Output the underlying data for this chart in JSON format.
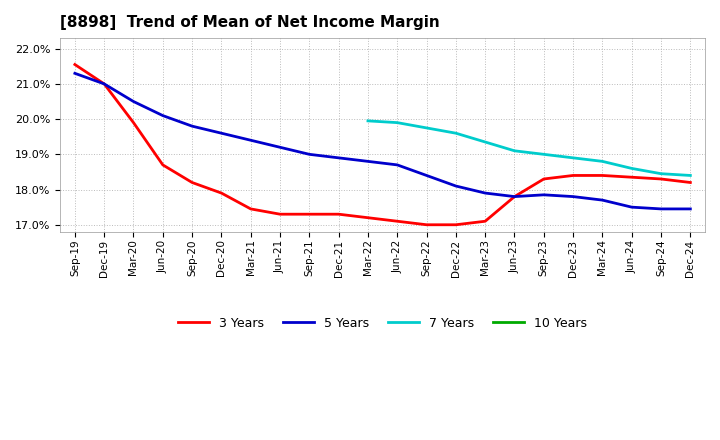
{
  "title": "[8898]  Trend of Mean of Net Income Margin",
  "ylim": [
    0.168,
    0.223
  ],
  "yticks": [
    0.17,
    0.18,
    0.19,
    0.2,
    0.21,
    0.22
  ],
  "background_color": "#ffffff",
  "grid_color": "#aaaaaa",
  "series": {
    "3 Years": {
      "color": "#ff0000",
      "x": [
        "Sep-19",
        "Dec-19",
        "Mar-20",
        "Jun-20",
        "Sep-20",
        "Dec-20",
        "Mar-21",
        "Jun-21",
        "Sep-21",
        "Dec-21",
        "Mar-22",
        "Jun-22",
        "Sep-22",
        "Dec-22",
        "Mar-23",
        "Jun-23",
        "Sep-23",
        "Dec-23",
        "Mar-24",
        "Jun-24",
        "Sep-24",
        "Dec-24"
      ],
      "y": [
        0.2155,
        0.21,
        0.199,
        0.187,
        0.182,
        0.179,
        0.1745,
        0.173,
        0.173,
        0.173,
        0.172,
        0.171,
        0.17,
        0.17,
        0.171,
        0.178,
        0.183,
        0.184,
        0.184,
        0.1835,
        0.183,
        0.182
      ]
    },
    "5 Years": {
      "color": "#0000cc",
      "x": [
        "Sep-19",
        "Dec-19",
        "Mar-20",
        "Jun-20",
        "Sep-20",
        "Dec-20",
        "Mar-21",
        "Jun-21",
        "Sep-21",
        "Dec-21",
        "Mar-22",
        "Jun-22",
        "Sep-22",
        "Dec-22",
        "Mar-23",
        "Jun-23",
        "Sep-23",
        "Dec-23",
        "Mar-24",
        "Jun-24",
        "Sep-24",
        "Dec-24"
      ],
      "y": [
        0.213,
        0.21,
        0.205,
        0.201,
        0.198,
        0.196,
        0.194,
        0.192,
        0.19,
        0.189,
        0.188,
        0.187,
        0.184,
        0.181,
        0.179,
        0.178,
        0.1785,
        0.178,
        0.177,
        0.175,
        0.1745,
        0.1745
      ]
    },
    "7 Years": {
      "color": "#00cccc",
      "x": [
        "Mar-22",
        "Jun-22",
        "Sep-22",
        "Dec-22",
        "Mar-23",
        "Jun-23",
        "Sep-23",
        "Dec-23",
        "Mar-24",
        "Jun-24",
        "Sep-24",
        "Dec-24"
      ],
      "y": [
        0.1995,
        0.199,
        0.1975,
        0.196,
        0.1935,
        0.191,
        0.19,
        0.189,
        0.188,
        0.186,
        0.1845,
        0.184
      ]
    },
    "10 Years": {
      "color": "#00aa00",
      "x": [],
      "y": []
    }
  },
  "xtick_labels": [
    "Sep-19",
    "Dec-19",
    "Mar-20",
    "Jun-20",
    "Sep-20",
    "Dec-20",
    "Mar-21",
    "Jun-21",
    "Sep-21",
    "Dec-21",
    "Mar-22",
    "Jun-22",
    "Sep-22",
    "Dec-22",
    "Mar-23",
    "Jun-23",
    "Sep-23",
    "Dec-23",
    "Mar-24",
    "Jun-24",
    "Sep-24",
    "Dec-24"
  ],
  "legend_order": [
    "3 Years",
    "5 Years",
    "7 Years",
    "10 Years"
  ]
}
